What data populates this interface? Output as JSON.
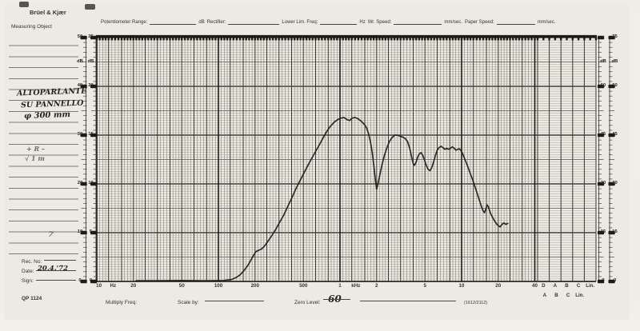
{
  "header": {
    "brand": "Brüel & Kjær",
    "fields": [
      {
        "label": "Potentiometer Range:",
        "unit": "dB"
      },
      {
        "label": "Rectifier:",
        "unit": ""
      },
      {
        "label": "Lower Lim. Freq:",
        "unit": "Hz"
      },
      {
        "label": "Wr. Speed:",
        "unit": "mm/sec."
      },
      {
        "label": "Paper Speed:",
        "unit": "mm/sec."
      }
    ]
  },
  "left_panel": {
    "measuring_object": "Measuring Object",
    "handwriting": [
      "ALTOPARLANTE",
      "SU PANNELLO",
      "φ 300 mm"
    ],
    "notes": [
      "+ R –",
      "√  1 m"
    ],
    "mark": "7",
    "rec_no_label": "Rec. No:",
    "date_label": "Date:",
    "date_value": "20.4.'72",
    "sign_label": "Sign:",
    "paper_code": "QP 1124"
  },
  "left_scale": {
    "pairs": [
      [
        "50",
        "25"
      ],
      [
        "dB",
        "dB"
      ],
      [
        "40",
        "20"
      ],
      [
        "30",
        "15"
      ],
      [
        "20",
        "10"
      ],
      [
        "10",
        "5"
      ],
      [
        "0",
        "0"
      ]
    ],
    "positions_db": [
      50,
      45,
      40,
      30,
      20,
      10,
      0
    ]
  },
  "right_scale": {
    "pairs": [
      [
        "",
        "75"
      ],
      [
        "dB",
        "dB"
      ],
      [
        "60",
        "60"
      ],
      [
        "45",
        "45"
      ],
      [
        "30",
        "30"
      ],
      [
        "15",
        "15"
      ],
      [
        "0",
        "0"
      ]
    ],
    "positions_db": [
      50,
      45,
      40,
      30,
      20,
      10,
      0
    ]
  },
  "bottom_axis": {
    "freq_labels": [
      {
        "t": "10",
        "f": 10.4
      },
      {
        "t": "Hz",
        "f": 13.6
      },
      {
        "t": "20",
        "f": 20
      },
      {
        "t": "50",
        "f": 50
      },
      {
        "t": "100",
        "f": 100
      },
      {
        "t": "200",
        "f": 200
      },
      {
        "t": "500",
        "f": 500
      },
      {
        "t": "1",
        "f": 1000
      },
      {
        "t": "kHz",
        "f": 1350
      },
      {
        "t": "2",
        "f": 2000
      },
      {
        "t": "5",
        "f": 5000
      },
      {
        "t": "10",
        "f": 10000
      },
      {
        "t": "20",
        "f": 20000
      },
      {
        "t": "40",
        "f": 40000
      }
    ],
    "filter_row1": [
      "D",
      "A",
      "B",
      "C",
      "Lin."
    ],
    "filter_row2": [
      "A",
      "B",
      "C",
      "Lin."
    ]
  },
  "footer": {
    "multiply_freq_label": "Multiply Freq:",
    "scale_by_label": "Scale by:",
    "zero_level_label": "Zero Level:",
    "zero_level_value": "60",
    "code": "(1612/2112)"
  },
  "colors": {
    "paper": "#eceae2",
    "ink_heavy": "#1c1b16",
    "grid_major": "#3a372e",
    "grid_minor_v": "#6b685e",
    "grid_minor_h": "#97948a",
    "curve": "#201e19"
  },
  "chart_data": {
    "type": "line",
    "title": "ALTOPARLANTE SU PANNELLO φ 300 mm — frequency response pen trace",
    "x_axis": {
      "scale": "log",
      "unit": "Hz",
      "min": 10,
      "max": 40000,
      "tick_labels": [
        "10 Hz",
        "20",
        "50",
        "100",
        "200",
        "500",
        "1 kHz",
        "2",
        "5",
        "10",
        "20",
        "40"
      ],
      "extra_columns": [
        "D",
        "A",
        "B",
        "C",
        "Lin."
      ]
    },
    "y_axis": {
      "unit": "dB",
      "min": 0,
      "max": 50,
      "left_scale_labels": [
        50,
        40,
        30,
        20,
        10,
        0
      ],
      "left_inner_scale_labels": [
        25,
        20,
        15,
        10,
        5,
        0
      ],
      "right_scale_labels": [
        75,
        60,
        45,
        30,
        15,
        0
      ],
      "zero_level_db": 60
    },
    "grid": true,
    "series": [
      {
        "name": "pen-trace",
        "points": [
          [
            21,
            0.15
          ],
          [
            30,
            0.15
          ],
          [
            50,
            0.2
          ],
          [
            80,
            0.15
          ],
          [
            110,
            0.2
          ],
          [
            128,
            0.4
          ],
          [
            140,
            0.8
          ],
          [
            150,
            1.3
          ],
          [
            162,
            2.2
          ],
          [
            175,
            3.3
          ],
          [
            190,
            4.9
          ],
          [
            203,
            6.1
          ],
          [
            215,
            6.4
          ],
          [
            228,
            6.7
          ],
          [
            242,
            7.4
          ],
          [
            258,
            8.4
          ],
          [
            275,
            9.4
          ],
          [
            295,
            10.6
          ],
          [
            320,
            12.2
          ],
          [
            345,
            13.6
          ],
          [
            372,
            15.4
          ],
          [
            400,
            17.0
          ],
          [
            432,
            18.9
          ],
          [
            465,
            20.5
          ],
          [
            500,
            22.0
          ],
          [
            545,
            23.8
          ],
          [
            590,
            25.4
          ],
          [
            635,
            26.8
          ],
          [
            690,
            28.4
          ],
          [
            740,
            29.8
          ],
          [
            790,
            31.0
          ],
          [
            840,
            31.9
          ],
          [
            900,
            32.7
          ],
          [
            960,
            33.2
          ],
          [
            1020,
            33.5
          ],
          [
            1080,
            33.6
          ],
          [
            1140,
            33.2
          ],
          [
            1200,
            33.0
          ],
          [
            1260,
            33.5
          ],
          [
            1330,
            33.6
          ],
          [
            1400,
            33.4
          ],
          [
            1470,
            33.0
          ],
          [
            1530,
            32.6
          ],
          [
            1600,
            32.1
          ],
          [
            1660,
            31.4
          ],
          [
            1720,
            30.2
          ],
          [
            1780,
            28.6
          ],
          [
            1840,
            26.4
          ],
          [
            1900,
            23.6
          ],
          [
            1950,
            21.0
          ],
          [
            2000,
            18.9
          ],
          [
            2060,
            20.2
          ],
          [
            2130,
            21.9
          ],
          [
            2220,
            24.0
          ],
          [
            2320,
            25.9
          ],
          [
            2430,
            27.4
          ],
          [
            2550,
            28.7
          ],
          [
            2680,
            29.5
          ],
          [
            2820,
            30.0
          ],
          [
            2960,
            30.0
          ],
          [
            3110,
            29.8
          ],
          [
            3270,
            29.6
          ],
          [
            3440,
            29.3
          ],
          [
            3600,
            28.6
          ],
          [
            3750,
            27.2
          ],
          [
            3900,
            25.3
          ],
          [
            4000,
            24.2
          ],
          [
            4100,
            23.8
          ],
          [
            4220,
            24.4
          ],
          [
            4350,
            25.5
          ],
          [
            4500,
            26.2
          ],
          [
            4650,
            26.4
          ],
          [
            4800,
            25.8
          ],
          [
            4950,
            24.9
          ],
          [
            5100,
            23.9
          ],
          [
            5300,
            23.0
          ],
          [
            5500,
            22.7
          ],
          [
            5700,
            23.4
          ],
          [
            5900,
            24.6
          ],
          [
            6100,
            25.9
          ],
          [
            6300,
            26.9
          ],
          [
            6550,
            27.5
          ],
          [
            6800,
            27.7
          ],
          [
            7050,
            27.4
          ],
          [
            7300,
            27.1
          ],
          [
            7550,
            27.3
          ],
          [
            7800,
            27.1
          ],
          [
            8100,
            27.3
          ],
          [
            8400,
            27.6
          ],
          [
            8700,
            27.3
          ],
          [
            9000,
            26.9
          ],
          [
            9300,
            27.1
          ],
          [
            9600,
            27.2
          ],
          [
            9900,
            26.8
          ],
          [
            10200,
            26.2
          ],
          [
            10500,
            25.4
          ],
          [
            10900,
            24.4
          ],
          [
            11300,
            23.4
          ],
          [
            11800,
            22.1
          ],
          [
            12300,
            20.9
          ],
          [
            12800,
            19.6
          ],
          [
            13300,
            18.4
          ],
          [
            13900,
            16.9
          ],
          [
            14500,
            15.5
          ],
          [
            15000,
            14.5
          ],
          [
            15400,
            14.1
          ],
          [
            15800,
            14.8
          ],
          [
            16200,
            15.7
          ],
          [
            16600,
            15.3
          ],
          [
            17000,
            14.5
          ],
          [
            17500,
            13.7
          ],
          [
            18100,
            13.0
          ],
          [
            18700,
            12.4
          ],
          [
            19400,
            11.8
          ],
          [
            20100,
            11.4
          ],
          [
            20800,
            11.2
          ],
          [
            21500,
            11.7
          ],
          [
            22300,
            12.0
          ],
          [
            23100,
            11.7
          ],
          [
            24000,
            11.9
          ]
        ]
      }
    ]
  }
}
